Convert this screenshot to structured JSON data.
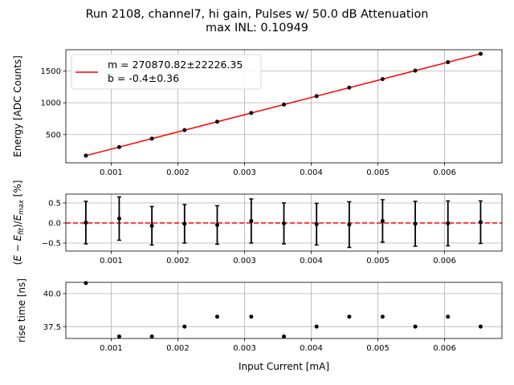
{
  "title_line1": "Run 2108, channel7, hi gain, Pulses w/ 50.0 dB Attenuation",
  "title_line2": "max INL: 0.10949",
  "colors": {
    "fit_line": "#ff0000",
    "points": "#000000",
    "zero_line": "#ff0000",
    "grid": "#b0b0b0"
  },
  "chart_data": [
    {
      "type": "line",
      "name": "energy-vs-current",
      "ylabel": "Energy [ADC Counts]",
      "xlabel": "",
      "xlim": [
        0.00032,
        0.00686
      ],
      "ylim": [
        55,
        1835
      ],
      "xticks": [
        0.001,
        0.002,
        0.003,
        0.004,
        0.005,
        0.006
      ],
      "xtick_labels": [
        "0.001",
        "0.002",
        "0.003",
        "0.004",
        "0.005",
        "0.006"
      ],
      "yticks": [
        500,
        1000,
        1500
      ],
      "ytick_labels": [
        "500",
        "1000",
        "1500"
      ],
      "grid": true,
      "legend_position": "upper-left",
      "legend": [
        "m = 270870.82±22226.35",
        "b = -0.4±0.36"
      ],
      "fit": {
        "m": 270870.82,
        "b": -0.4
      },
      "x": [
        0.00062,
        0.00112,
        0.00161,
        0.0021,
        0.00259,
        0.0031,
        0.00359,
        0.00408,
        0.00457,
        0.00507,
        0.00556,
        0.00605,
        0.00654
      ],
      "y": [
        168,
        303,
        436,
        569,
        702,
        840,
        972,
        1105,
        1238,
        1373,
        1506,
        1639,
        1771
      ]
    },
    {
      "type": "scatter",
      "name": "residuals",
      "ylabel": "(E − E_fit)/E_max [%]",
      "xlim": [
        0.00032,
        0.00686
      ],
      "ylim": [
        -0.7,
        0.72
      ],
      "xticks": [
        0.001,
        0.002,
        0.003,
        0.004,
        0.005,
        0.006
      ],
      "xtick_labels": [
        "0.001",
        "0.002",
        "0.003",
        "0.004",
        "0.005",
        "0.006"
      ],
      "yticks": [
        -0.5,
        0.0,
        0.5
      ],
      "ytick_labels": [
        "−0.5",
        "0.0",
        "0.5"
      ],
      "grid": true,
      "reference_line": 0,
      "x": [
        0.00062,
        0.00112,
        0.00161,
        0.0021,
        0.00259,
        0.0031,
        0.00359,
        0.00408,
        0.00457,
        0.00507,
        0.00556,
        0.00605,
        0.00654
      ],
      "y": [
        0.01,
        0.11,
        -0.07,
        -0.02,
        -0.05,
        0.05,
        -0.01,
        -0.03,
        -0.04,
        0.05,
        -0.02,
        -0.01,
        0.02
      ],
      "yerr": [
        0.53,
        0.54,
        0.48,
        0.48,
        0.48,
        0.55,
        0.51,
        0.52,
        0.57,
        0.53,
        0.56,
        0.56,
        0.53
      ]
    },
    {
      "type": "scatter",
      "name": "rise-time",
      "ylabel": "rise time [ns]",
      "xlabel": "Input Current [mA]",
      "xlim": [
        0.00032,
        0.00686
      ],
      "ylim": [
        36.6,
        40.85
      ],
      "xticks": [
        0.001,
        0.002,
        0.003,
        0.004,
        0.005,
        0.006
      ],
      "xtick_labels": [
        "0.001",
        "0.002",
        "0.003",
        "0.004",
        "0.005",
        "0.006"
      ],
      "yticks": [
        37.5,
        40.0
      ],
      "ytick_labels": [
        "37.5",
        "40.0"
      ],
      "grid": true,
      "x": [
        0.00062,
        0.00112,
        0.00161,
        0.0021,
        0.00259,
        0.0031,
        0.00359,
        0.00408,
        0.00457,
        0.00507,
        0.00556,
        0.00605,
        0.00654
      ],
      "y": [
        40.8,
        36.75,
        36.75,
        37.5,
        38.25,
        38.25,
        36.75,
        37.5,
        38.25,
        38.25,
        37.5,
        38.25,
        37.5
      ]
    }
  ]
}
